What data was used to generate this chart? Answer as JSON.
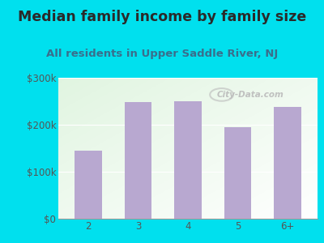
{
  "title": "Median family income by family size",
  "subtitle": "All residents in Upper Saddle River, NJ",
  "categories": [
    "2",
    "3",
    "4",
    "5",
    "6+"
  ],
  "values": [
    145000,
    248000,
    250000,
    195000,
    238000
  ],
  "bar_color": "#b8a8d0",
  "background_outer": "#00e0ee",
  "title_color": "#2a2a2a",
  "subtitle_color": "#3a6e8c",
  "tick_color": "#555555",
  "ylim": [
    0,
    300000
  ],
  "yticks": [
    0,
    100000,
    200000,
    300000
  ],
  "ytick_labels": [
    "$0",
    "$100k",
    "$200k",
    "$300k"
  ],
  "title_fontsize": 12.5,
  "subtitle_fontsize": 9.5,
  "tick_fontsize": 8.5,
  "watermark": "City-Data.com"
}
